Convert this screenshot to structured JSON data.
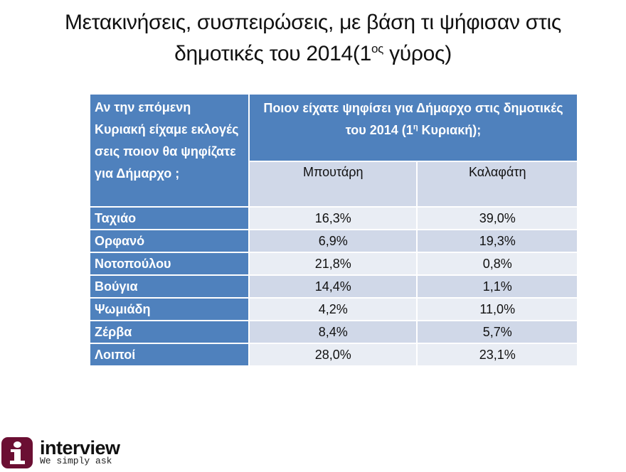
{
  "title": {
    "line1": "Μετακινήσεις, συσπειρώσεις, με βάση τι ψήφισαν στις",
    "line2_main": "δημοτικές του 2014(1",
    "line2_sup": "ος",
    "line2_end": " γύρος)"
  },
  "table": {
    "corner_header": "Αν την επόμενη Κυριακή είχαμε εκλογές σεις ποιον θα ψηφίζατε για Δήμαρχο ;",
    "question_header_main": "Ποιον είχατε ψηφίσει για Δήμαρχο στις δημοτικές του 2014 (1",
    "question_header_sup": "η",
    "question_header_end": " Κυριακή);",
    "columns": [
      "Μπουτάρη",
      "Καλαφάτη"
    ],
    "rows": [
      {
        "label": "Ταχιάο",
        "values": [
          "16,3%",
          "39,0%"
        ]
      },
      {
        "label": "Ορφανό",
        "values": [
          "6,9%",
          "19,3%"
        ]
      },
      {
        "label": "Νοτοπούλου",
        "values": [
          "21,8%",
          "0,8%"
        ]
      },
      {
        "label": "Βούγια",
        "values": [
          "14,4%",
          "1,1%"
        ]
      },
      {
        "label": "Ψωμιάδη",
        "values": [
          "4,2%",
          "11,0%"
        ]
      },
      {
        "label": "Ζέρβα",
        "values": [
          "8,4%",
          "5,7%"
        ]
      },
      {
        "label": "Λοιποί",
        "values": [
          "28,0%",
          "23,1%"
        ]
      }
    ]
  },
  "logo": {
    "brand": "interview",
    "slogan": "We simply ask",
    "icon": "info-i-icon"
  },
  "colors": {
    "header_blue": "#4f81bd",
    "row_light": "#e9edf4",
    "row_dark": "#d0d8e8",
    "logo_maroon": "#6b0f33"
  }
}
